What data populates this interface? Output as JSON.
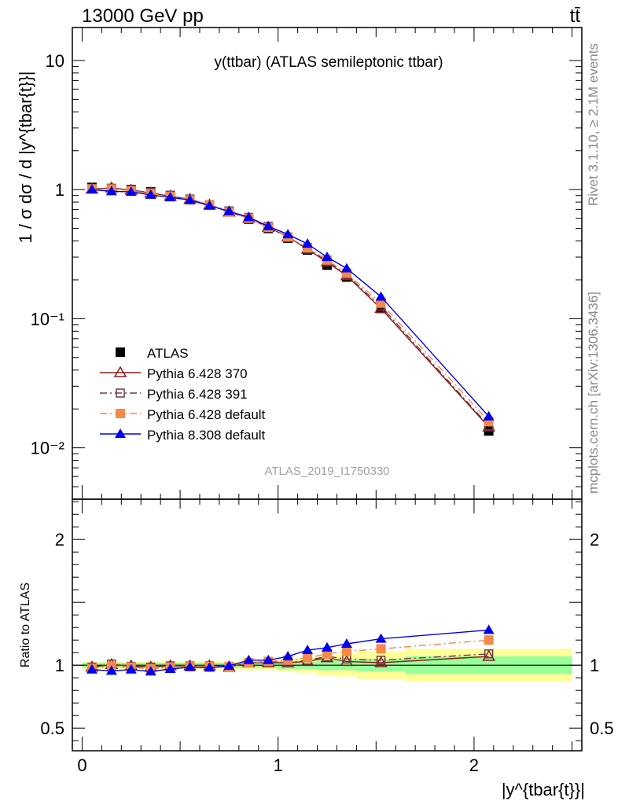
{
  "header": {
    "left": "13000 GeV pp",
    "right": "tt̄"
  },
  "side_labels": {
    "rivet": "Rivet 3.1.10, ≥ 2.1M events",
    "mcplots": "mcplots.cern.ch [arXiv:1306.3436]"
  },
  "chart_data": [
    {
      "type": "line",
      "title": "y(ttbar) (ATLAS semileptonic ttbar)",
      "watermark": "ATLAS_2019_I1750330",
      "ylabel": "1 / σ dσ / d |y^{tbar{t}}|",
      "xlabel": "|y^{tbar{t}}|",
      "yscale": "log",
      "ylim": [
        0.004,
        18
      ],
      "xlim": [
        -0.05,
        2.55
      ],
      "y_ticks": [
        {
          "value": 10,
          "label": "10"
        },
        {
          "value": 1,
          "label": "1"
        },
        {
          "value": 0.1,
          "label": "10⁻¹"
        },
        {
          "value": 0.01,
          "label": "10⁻²"
        }
      ],
      "legend_position": "bottom-left",
      "x": [
        0.05,
        0.15,
        0.25,
        0.35,
        0.45,
        0.55,
        0.65,
        0.75,
        0.85,
        0.95,
        1.05,
        1.15,
        1.25,
        1.35,
        1.525,
        2.075
      ],
      "series": [
        {
          "name": "ATLAS",
          "color": "#000000",
          "marker": "square",
          "line": "none",
          "values": [
            1.04,
            1.02,
            1.0,
            0.96,
            0.9,
            0.84,
            0.76,
            0.68,
            0.59,
            0.5,
            0.42,
            0.34,
            0.26,
            0.21,
            0.12,
            0.0135
          ]
        },
        {
          "name": "Pythia 6.428 370",
          "color": "#8b1a1a",
          "marker": "open-triangle",
          "line": "solid",
          "values": [
            1.01,
            1.03,
            0.99,
            0.94,
            0.89,
            0.84,
            0.76,
            0.67,
            0.6,
            0.51,
            0.43,
            0.345,
            0.275,
            0.215,
            0.12,
            0.0145
          ]
        },
        {
          "name": "Pythia 6.428 391",
          "color": "#6b3a4a",
          "marker": "open-square",
          "line": "dash-dot",
          "values": [
            1.02,
            1.02,
            0.99,
            0.95,
            0.89,
            0.84,
            0.76,
            0.68,
            0.61,
            0.52,
            0.43,
            0.35,
            0.28,
            0.218,
            0.125,
            0.0148
          ]
        },
        {
          "name": "Pythia 6.428 default",
          "color": "#f5894a",
          "marker": "square",
          "line": "dash-dot",
          "values": [
            1.01,
            1.01,
            0.98,
            0.93,
            0.89,
            0.83,
            0.76,
            0.67,
            0.6,
            0.51,
            0.43,
            0.355,
            0.285,
            0.225,
            0.132,
            0.016
          ]
        },
        {
          "name": "Pythia 8.308 default",
          "color": "#0000ee",
          "marker": "triangle",
          "line": "solid",
          "values": [
            1.0,
            0.97,
            0.96,
            0.91,
            0.87,
            0.83,
            0.75,
            0.68,
            0.61,
            0.52,
            0.45,
            0.38,
            0.3,
            0.245,
            0.148,
            0.0175
          ]
        }
      ]
    },
    {
      "type": "line",
      "ylabel": "Ratio to ATLAS",
      "ylim": [
        0.32,
        2.32
      ],
      "y_ticks": [
        {
          "value": 2,
          "label": "2"
        },
        {
          "value": 1,
          "label": "1"
        },
        {
          "value": 0.5,
          "label": "0.5"
        }
      ],
      "x_ticks": [
        {
          "value": 0,
          "label": "0"
        },
        {
          "value": 1,
          "label": "1"
        },
        {
          "value": 2,
          "label": "2"
        }
      ],
      "reference": 1,
      "bands": {
        "bin_edges": [
          0.0,
          0.1,
          0.2,
          0.3,
          0.4,
          0.5,
          0.6,
          0.7,
          0.8,
          0.9,
          1.0,
          1.1,
          1.2,
          1.3,
          1.4,
          1.65,
          2.5
        ],
        "inner_color": "#99ff99",
        "outer_color": "#ffff99",
        "inner_halfwidth": [
          0.02,
          0.02,
          0.02,
          0.02,
          0.02,
          0.02,
          0.02,
          0.02,
          0.02,
          0.02,
          0.03,
          0.03,
          0.04,
          0.04,
          0.05,
          0.07
        ],
        "outer_halfwidth": [
          0.03,
          0.03,
          0.03,
          0.03,
          0.03,
          0.03,
          0.03,
          0.03,
          0.04,
          0.04,
          0.05,
          0.06,
          0.08,
          0.09,
          0.11,
          0.13
        ]
      },
      "x": [
        0.05,
        0.15,
        0.25,
        0.35,
        0.45,
        0.55,
        0.65,
        0.75,
        0.85,
        0.95,
        1.05,
        1.15,
        1.25,
        1.35,
        1.525,
        2.075
      ],
      "series": [
        {
          "name": "Pythia 6.428 370",
          "color": "#8b1a1a",
          "marker": "open-triangle",
          "line": "solid",
          "values": [
            0.985,
            1.005,
            0.995,
            0.985,
            0.995,
            0.995,
            0.995,
            0.985,
            1.02,
            1.02,
            1.02,
            1.03,
            1.06,
            1.03,
            1.02,
            1.07
          ]
        },
        {
          "name": "Pythia 6.428 391",
          "color": "#6b3a4a",
          "marker": "open-square",
          "line": "dash-dot",
          "values": [
            0.985,
            1.01,
            0.99,
            0.985,
            0.995,
            0.995,
            0.995,
            0.99,
            1.02,
            1.03,
            1.02,
            1.04,
            1.07,
            1.05,
            1.04,
            1.09
          ]
        },
        {
          "name": "Pythia 6.428 default",
          "color": "#f5894a",
          "marker": "square",
          "line": "dash-dot",
          "values": [
            0.975,
            0.99,
            0.985,
            0.97,
            0.985,
            0.99,
            0.99,
            0.99,
            1.02,
            1.03,
            1.04,
            1.06,
            1.09,
            1.11,
            1.13,
            1.2
          ]
        },
        {
          "name": "Pythia 8.308 default",
          "color": "#0000ee",
          "marker": "triangle",
          "line": "solid",
          "values": [
            0.965,
            0.955,
            0.965,
            0.95,
            0.97,
            0.985,
            0.98,
            0.995,
            1.04,
            1.04,
            1.07,
            1.12,
            1.14,
            1.17,
            1.21,
            1.28
          ]
        }
      ]
    }
  ]
}
